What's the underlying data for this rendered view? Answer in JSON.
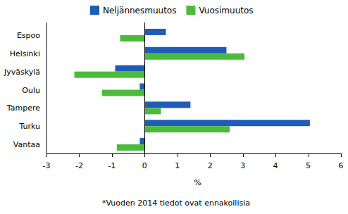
{
  "chart_data": {
    "type": "bar",
    "orientation": "horizontal",
    "categories": [
      "Espoo",
      "Helsinki",
      "Jyväskylä",
      "Oulu",
      "Tampere",
      "Turku",
      "Vantaa"
    ],
    "series": [
      {
        "name": "Neljännesmuutos",
        "color": "#1f5cb8",
        "values": [
          0.65,
          2.5,
          -0.9,
          -0.15,
          1.4,
          5.05,
          -0.15
        ]
      },
      {
        "name": "Vuosimuutos",
        "color": "#4cbb3c",
        "values": [
          -0.75,
          3.05,
          -2.15,
          -1.3,
          0.5,
          2.6,
          -0.85
        ]
      }
    ],
    "xlabel": "%",
    "xlim": [
      -3,
      6
    ],
    "xticks": [
      -3,
      -2,
      -1,
      0,
      1,
      2,
      3,
      4,
      5,
      6
    ],
    "grid": false,
    "legend": "top",
    "annotations": [
      "*Vuoden 2014 tiedot ovat ennakollisia"
    ]
  }
}
